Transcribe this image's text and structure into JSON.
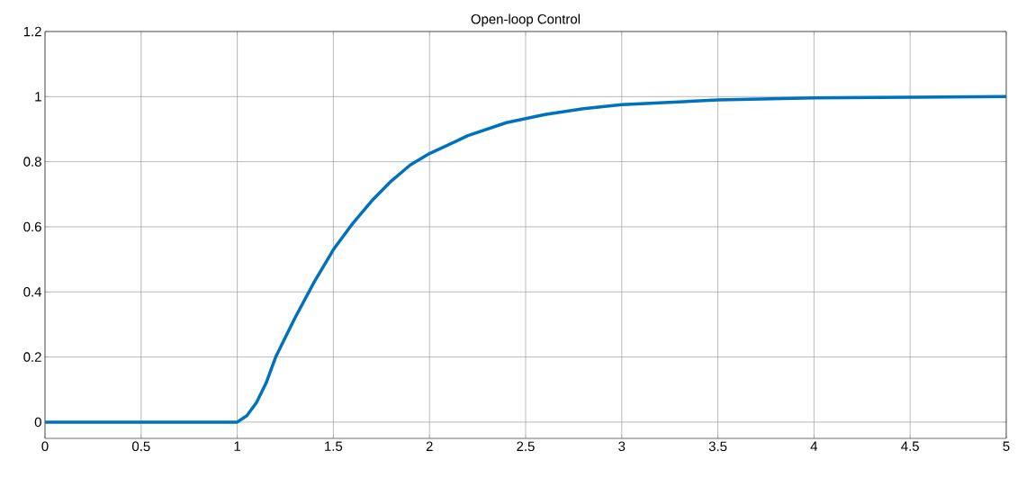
{
  "chart_data": {
    "type": "line",
    "title": "Open-loop Control",
    "x": [
      0,
      0.5,
      1,
      1.05,
      1.1,
      1.15,
      1.2,
      1.3,
      1.4,
      1.5,
      1.6,
      1.7,
      1.8,
      1.9,
      2.0,
      2.2,
      2.4,
      2.6,
      2.8,
      3.0,
      3.5,
      4.0,
      4.5,
      5
    ],
    "values": [
      0,
      0,
      0,
      0.02,
      0.06,
      0.12,
      0.2,
      0.32,
      0.43,
      0.53,
      0.61,
      0.68,
      0.74,
      0.79,
      0.825,
      0.88,
      0.92,
      0.945,
      0.963,
      0.975,
      0.99,
      0.996,
      0.998,
      1.0
    ],
    "color": "#0072bd",
    "xlim": [
      0,
      5
    ],
    "ylim": [
      -0.05,
      1.2
    ],
    "xticks": [
      0,
      0.5,
      1,
      1.5,
      2,
      2.5,
      3,
      3.5,
      4,
      4.5,
      5
    ],
    "yticks": [
      0,
      0.2,
      0.4,
      0.6,
      0.8,
      1,
      1.2
    ],
    "grid": true
  }
}
